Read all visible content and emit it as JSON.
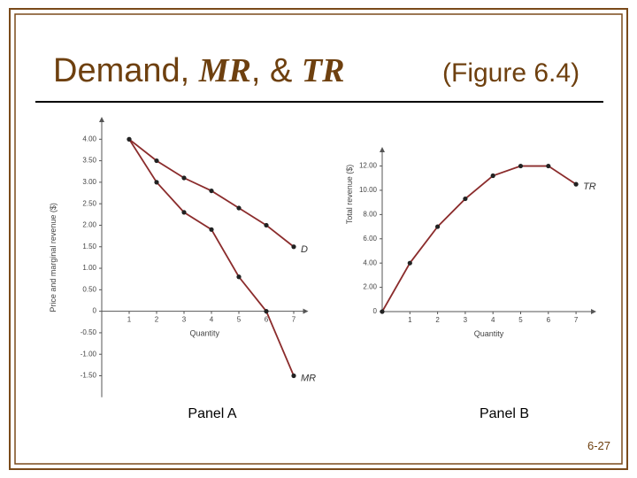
{
  "slide": {
    "title_parts": [
      "Demand, ",
      "MR",
      ", & ",
      "TR"
    ],
    "figure": "(Figure 6.4)",
    "page_number": "6-27"
  },
  "chart_data": [
    {
      "type": "line",
      "caption": "Panel A",
      "xlabel": "Quantity",
      "ylabel": "Price and marginal revenue ($)",
      "x": [
        1,
        2,
        3,
        4,
        5,
        6,
        7
      ],
      "series": [
        {
          "name": "D",
          "color": "#8b2c2c",
          "values": [
            4,
            3.5,
            3.1,
            2.8,
            2.4,
            2,
            1.5
          ]
        },
        {
          "name": "MR",
          "color": "#8b2c2c",
          "values": [
            4,
            3,
            2.3,
            1.9,
            0.8,
            0,
            -1.5
          ]
        }
      ],
      "xlim": [
        0,
        7.5
      ],
      "xticks": [
        1,
        2,
        3,
        4,
        5,
        6,
        7
      ],
      "ylim": [
        -2,
        4.5
      ],
      "yticks": [
        {
          "value": 4,
          "label": "4.00"
        },
        {
          "value": 3.5,
          "label": "3.50"
        },
        {
          "value": 3,
          "label": "3.00"
        },
        {
          "value": 2.5,
          "label": "2.50"
        },
        {
          "value": 2,
          "label": "2.00"
        },
        {
          "value": 1.5,
          "label": "1.50"
        },
        {
          "value": 1,
          "label": "1.00"
        },
        {
          "value": 0.5,
          "label": "0.50"
        },
        0,
        {
          "value": -0.5,
          "label": "-0.50"
        },
        {
          "value": -1,
          "label": "-1.00"
        },
        {
          "value": -1.5,
          "label": "-1.50"
        }
      ]
    },
    {
      "type": "line",
      "caption": "Panel B",
      "xlabel": "Quantity",
      "ylabel": "Total revenue ($)",
      "x": [
        0,
        1,
        2,
        3,
        4,
        5,
        6,
        7
      ],
      "series": [
        {
          "name": "TR",
          "color": "#8b2c2c",
          "values": [
            0,
            4,
            7,
            9.3,
            11.2,
            12,
            12,
            10.5
          ]
        }
      ],
      "xlim": [
        0,
        7.7
      ],
      "xticks": [
        1,
        2,
        3,
        4,
        5,
        6,
        7
      ],
      "ylim": [
        0,
        13.5
      ],
      "yticks": [
        0,
        {
          "value": 2,
          "label": "2.00"
        },
        {
          "value": 4,
          "label": "4.00"
        },
        {
          "value": 6,
          "label": "6.00"
        },
        {
          "value": 8,
          "label": "8.00"
        },
        {
          "value": 10,
          "label": "10.00"
        },
        {
          "value": 12,
          "label": "12.00"
        }
      ]
    }
  ]
}
